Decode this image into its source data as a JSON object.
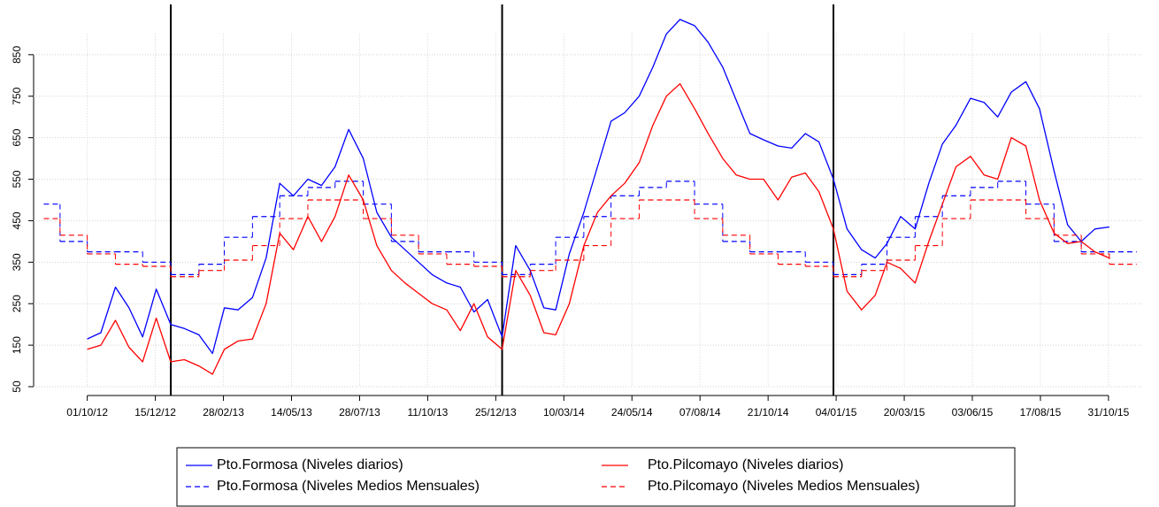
{
  "chart_data": {
    "type": "line",
    "xlim": [
      "2012-08-14",
      "2015-12-08"
    ],
    "ylim": [
      50,
      900
    ],
    "yticks": [
      50,
      150,
      250,
      350,
      450,
      550,
      650,
      750,
      850
    ],
    "xticks": [
      {
        "value": "2012-10-01",
        "label": "01/10/12"
      },
      {
        "value": "2012-12-15",
        "label": "15/12/12"
      },
      {
        "value": "2013-02-28",
        "label": "28/02/13"
      },
      {
        "value": "2013-05-14",
        "label": "14/05/13"
      },
      {
        "value": "2013-07-28",
        "label": "28/07/13"
      },
      {
        "value": "2013-10-11",
        "label": "11/10/13"
      },
      {
        "value": "2013-12-25",
        "label": "25/12/13"
      },
      {
        "value": "2014-03-10",
        "label": "10/03/14"
      },
      {
        "value": "2014-05-24",
        "label": "24/05/14"
      },
      {
        "value": "2014-08-07",
        "label": "07/08/14"
      },
      {
        "value": "2014-10-21",
        "label": "21/10/14"
      },
      {
        "value": "2015-01-04",
        "label": "04/01/15"
      },
      {
        "value": "2015-03-20",
        "label": "20/03/15"
      },
      {
        "value": "2015-06-03",
        "label": "03/06/15"
      },
      {
        "value": "2015-08-17",
        "label": "17/08/15"
      },
      {
        "value": "2015-10-31",
        "label": "31/10/15"
      }
    ],
    "grid": true,
    "vlines": [
      "2013-01-01",
      "2014-01-01",
      "2015-01-01"
    ],
    "legend_position": "bottom",
    "series": [
      {
        "name": "Pto.Formosa (Niveles diarios)",
        "color": "#0000ff",
        "linestyle": "solid",
        "step": false,
        "x": [
          "2012-10-01",
          "2012-10-16",
          "2012-11-01",
          "2012-11-16",
          "2012-12-01",
          "2012-12-16",
          "2013-01-01",
          "2013-01-16",
          "2013-02-01",
          "2013-02-16",
          "2013-03-01",
          "2013-03-16",
          "2013-04-01",
          "2013-04-16",
          "2013-05-01",
          "2013-05-16",
          "2013-06-01",
          "2013-06-16",
          "2013-07-01",
          "2013-07-16",
          "2013-08-01",
          "2013-08-16",
          "2013-09-01",
          "2013-09-16",
          "2013-10-01",
          "2013-10-16",
          "2013-11-01",
          "2013-11-16",
          "2013-12-01",
          "2013-12-16",
          "2014-01-01",
          "2014-01-16",
          "2014-02-01",
          "2014-02-16",
          "2014-03-01",
          "2014-03-16",
          "2014-04-01",
          "2014-04-16",
          "2014-05-01",
          "2014-05-16",
          "2014-06-01",
          "2014-06-16",
          "2014-07-01",
          "2014-07-16",
          "2014-08-01",
          "2014-08-16",
          "2014-09-01",
          "2014-09-16",
          "2014-10-01",
          "2014-10-16",
          "2014-11-01",
          "2014-11-16",
          "2014-12-01",
          "2014-12-16",
          "2015-01-01",
          "2015-01-16",
          "2015-02-01",
          "2015-02-16",
          "2015-03-01",
          "2015-03-16",
          "2015-04-01",
          "2015-04-16",
          "2015-05-01",
          "2015-05-16",
          "2015-06-01",
          "2015-06-16",
          "2015-07-01",
          "2015-07-16",
          "2015-08-01",
          "2015-08-16",
          "2015-09-01",
          "2015-09-16",
          "2015-10-01",
          "2015-10-16",
          "2015-11-01"
        ],
        "values": [
          165,
          180,
          290,
          240,
          170,
          285,
          200,
          190,
          175,
          130,
          240,
          235,
          265,
          360,
          540,
          510,
          550,
          535,
          580,
          670,
          600,
          470,
          410,
          380,
          350,
          320,
          300,
          290,
          230,
          260,
          170,
          390,
          330,
          240,
          235,
          370,
          470,
          580,
          690,
          710,
          750,
          820,
          900,
          935,
          920,
          880,
          820,
          740,
          660,
          645,
          630,
          625,
          660,
          640,
          550,
          430,
          380,
          360,
          395,
          460,
          430,
          540,
          635,
          680,
          745,
          735,
          700,
          760,
          785,
          720,
          570,
          440,
          400,
          430,
          435
        ]
      },
      {
        "name": "Pto.Formosa (Niveles Medios Mensuales)",
        "color": "#0000ff",
        "linestyle": "dashed",
        "step": true,
        "x": [
          "2012-08-01",
          "2012-09-01",
          "2012-10-01",
          "2012-11-01",
          "2012-12-01",
          "2013-01-01",
          "2013-02-01",
          "2013-03-01",
          "2013-04-01",
          "2013-05-01",
          "2013-06-01",
          "2013-07-01",
          "2013-08-01",
          "2013-09-01",
          "2013-10-01",
          "2013-11-01",
          "2013-12-01",
          "2014-01-01",
          "2014-02-01",
          "2014-03-01",
          "2014-04-01",
          "2014-05-01",
          "2014-06-01",
          "2014-07-01",
          "2014-08-01",
          "2014-09-01",
          "2014-10-01",
          "2014-11-01",
          "2014-12-01",
          "2015-01-01",
          "2015-02-01",
          "2015-03-01",
          "2015-04-01",
          "2015-05-01",
          "2015-06-01",
          "2015-07-01",
          "2015-08-01",
          "2015-09-01",
          "2015-10-01",
          "2015-11-01"
        ],
        "values": [
          490,
          400,
          375,
          375,
          350,
          320,
          345,
          410,
          460,
          510,
          530,
          545,
          490,
          400,
          375,
          375,
          350,
          320,
          345,
          410,
          460,
          510,
          530,
          545,
          490,
          400,
          375,
          375,
          350,
          320,
          345,
          410,
          460,
          510,
          530,
          545,
          490,
          400,
          375,
          375
        ]
      },
      {
        "name": "Pto.Pilcomayo (Niveles diarios)",
        "color": "#ff0000",
        "linestyle": "solid",
        "step": false,
        "x": [
          "2012-10-01",
          "2012-10-16",
          "2012-11-01",
          "2012-11-16",
          "2012-12-01",
          "2012-12-16",
          "2013-01-01",
          "2013-01-16",
          "2013-02-01",
          "2013-02-16",
          "2013-03-01",
          "2013-03-16",
          "2013-04-01",
          "2013-04-16",
          "2013-05-01",
          "2013-05-16",
          "2013-06-01",
          "2013-06-16",
          "2013-07-01",
          "2013-07-16",
          "2013-08-01",
          "2013-08-16",
          "2013-09-01",
          "2013-09-16",
          "2013-10-01",
          "2013-10-16",
          "2013-11-01",
          "2013-11-16",
          "2013-12-01",
          "2013-12-16",
          "2014-01-01",
          "2014-01-16",
          "2014-02-01",
          "2014-02-16",
          "2014-03-01",
          "2014-03-16",
          "2014-04-01",
          "2014-04-16",
          "2014-05-01",
          "2014-05-16",
          "2014-06-01",
          "2014-06-16",
          "2014-07-01",
          "2014-07-16",
          "2014-08-01",
          "2014-08-16",
          "2014-09-01",
          "2014-09-16",
          "2014-10-01",
          "2014-10-16",
          "2014-11-01",
          "2014-11-16",
          "2014-12-01",
          "2014-12-16",
          "2015-01-01",
          "2015-01-16",
          "2015-02-01",
          "2015-02-16",
          "2015-03-01",
          "2015-03-16",
          "2015-04-01",
          "2015-04-16",
          "2015-05-01",
          "2015-05-16",
          "2015-06-01",
          "2015-06-16",
          "2015-07-01",
          "2015-07-16",
          "2015-08-01",
          "2015-08-16",
          "2015-09-01",
          "2015-09-16",
          "2015-10-01",
          "2015-10-16",
          "2015-11-01"
        ],
        "values": [
          140,
          150,
          210,
          145,
          110,
          215,
          110,
          115,
          100,
          80,
          140,
          160,
          165,
          250,
          420,
          380,
          460,
          400,
          460,
          560,
          500,
          390,
          330,
          300,
          275,
          250,
          235,
          185,
          250,
          170,
          140,
          330,
          270,
          180,
          175,
          250,
          390,
          470,
          510,
          540,
          590,
          680,
          750,
          780,
          720,
          660,
          600,
          560,
          550,
          550,
          500,
          555,
          565,
          520,
          430,
          280,
          235,
          270,
          350,
          335,
          300,
          400,
          490,
          580,
          605,
          560,
          550,
          650,
          630,
          500,
          420,
          395,
          400,
          375,
          360
        ]
      },
      {
        "name": "Pto.Pilcomayo (Niveles Medios Mensuales)",
        "color": "#ff0000",
        "linestyle": "dashed",
        "step": true,
        "x": [
          "2012-08-01",
          "2012-09-01",
          "2012-10-01",
          "2012-11-01",
          "2012-12-01",
          "2013-01-01",
          "2013-02-01",
          "2013-03-01",
          "2013-04-01",
          "2013-05-01",
          "2013-06-01",
          "2013-07-01",
          "2013-08-01",
          "2013-09-01",
          "2013-10-01",
          "2013-11-01",
          "2013-12-01",
          "2014-01-01",
          "2014-02-01",
          "2014-03-01",
          "2014-04-01",
          "2014-05-01",
          "2014-06-01",
          "2014-07-01",
          "2014-08-01",
          "2014-09-01",
          "2014-10-01",
          "2014-11-01",
          "2014-12-01",
          "2015-01-01",
          "2015-02-01",
          "2015-03-01",
          "2015-04-01",
          "2015-05-01",
          "2015-06-01",
          "2015-07-01",
          "2015-08-01",
          "2015-09-01",
          "2015-10-01",
          "2015-11-01"
        ],
        "values": [
          455,
          415,
          370,
          345,
          340,
          315,
          330,
          355,
          390,
          455,
          500,
          500,
          455,
          415,
          370,
          345,
          340,
          315,
          330,
          355,
          390,
          455,
          500,
          500,
          455,
          415,
          370,
          345,
          340,
          315,
          330,
          355,
          390,
          455,
          500,
          500,
          455,
          415,
          370,
          345
        ]
      }
    ]
  }
}
